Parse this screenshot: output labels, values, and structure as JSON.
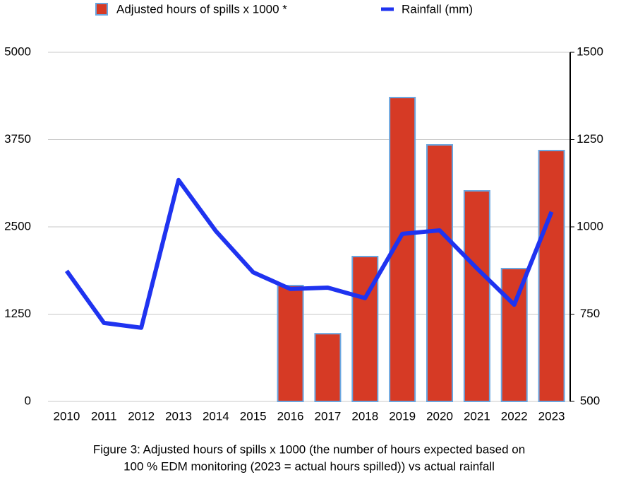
{
  "chart_data": {
    "type": "bar",
    "categories": [
      "2010",
      "2011",
      "2012",
      "2013",
      "2014",
      "2015",
      "2016",
      "2017",
      "2018",
      "2019",
      "2020",
      "2021",
      "2022",
      "2023"
    ],
    "series": [
      {
        "name": "Adjusted hours of spills x 1000 *",
        "type": "bar",
        "color": "#d63a25",
        "values": [
          null,
          null,
          null,
          null,
          null,
          null,
          1660,
          970,
          2075,
          4352,
          3674,
          3016,
          1903,
          3593
        ]
      },
      {
        "name": "Rainfall (mm)",
        "type": "line",
        "axis": "y2",
        "color": "#1f33f0",
        "values": [
          874,
          725,
          711,
          1134,
          988,
          870,
          822,
          826,
          796,
          980,
          990,
          881,
          777,
          1043
        ]
      }
    ],
    "ylim": [
      0,
      5000
    ],
    "yticks": [
      0,
      1250,
      2500,
      3750,
      5000
    ],
    "y2lim": [
      500,
      1500
    ],
    "y2ticks": [
      500,
      750,
      1000,
      1250,
      1500
    ],
    "grid": true,
    "caption": [
      "Figure 3: Adjusted hours of spills x 1000 (the number of hours expected based on",
      "100 % EDM monitoring (2023 = actual hours spilled)) vs actual rainfall"
    ]
  }
}
